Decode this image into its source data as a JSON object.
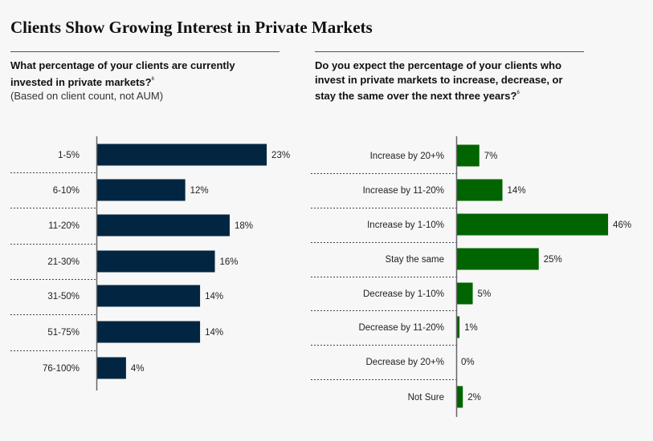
{
  "page": {
    "title": "Clients Show Growing Interest in Private Markets"
  },
  "colors": {
    "left_bar": "#022641",
    "right_bar": "#006400",
    "axis": "#666666",
    "divider": "#555555"
  },
  "left_question": {
    "line1": "What percentage of your clients are currently",
    "line2": "invested in private markets?",
    "footnote": "6",
    "subtitle": "(Based on client count, not AUM)"
  },
  "right_question": {
    "line1": "Do you expect the percentage of your clients who",
    "line2": "invest in private markets to increase, decrease, or",
    "line3": "stay the same over the next three years?",
    "footnote": "6"
  },
  "chart_data": [
    {
      "type": "bar",
      "orientation": "horizontal",
      "title": "What percentage of your clients are currently invested in private markets? (Based on client count, not AUM)",
      "xlabel": "",
      "ylabel": "",
      "categories": [
        "1-5%",
        "6-10%",
        "11-20%",
        "21-30%",
        "31-50%",
        "51-75%",
        "76-100%"
      ],
      "values": [
        23,
        12,
        18,
        16,
        14,
        14,
        4
      ],
      "labels": [
        "23%",
        "12%",
        "18%",
        "16%",
        "14%",
        "14%",
        "4%"
      ],
      "unit": "%",
      "xlim": [
        0,
        23
      ],
      "grid": false,
      "legend": "none"
    },
    {
      "type": "bar",
      "orientation": "horizontal",
      "title": "Do you expect the percentage of your clients who invest in private markets to increase, decrease, or stay the same over the next three years?",
      "xlabel": "",
      "ylabel": "",
      "categories": [
        "Increase by 20+%",
        "Increase by 11-20%",
        "Increase by 1-10%",
        "Stay the same",
        "Decrease by 1-10%",
        "Decrease by 11-20%",
        "Decrease by 20+%",
        "Not Sure"
      ],
      "values": [
        7,
        14,
        46,
        25,
        5,
        1,
        0,
        2
      ],
      "labels": [
        "7%",
        "14%",
        "46%",
        "25%",
        "5%",
        "1%",
        "0%",
        "2%"
      ],
      "unit": "%",
      "xlim": [
        0,
        46
      ],
      "grid": false,
      "legend": "none"
    }
  ]
}
